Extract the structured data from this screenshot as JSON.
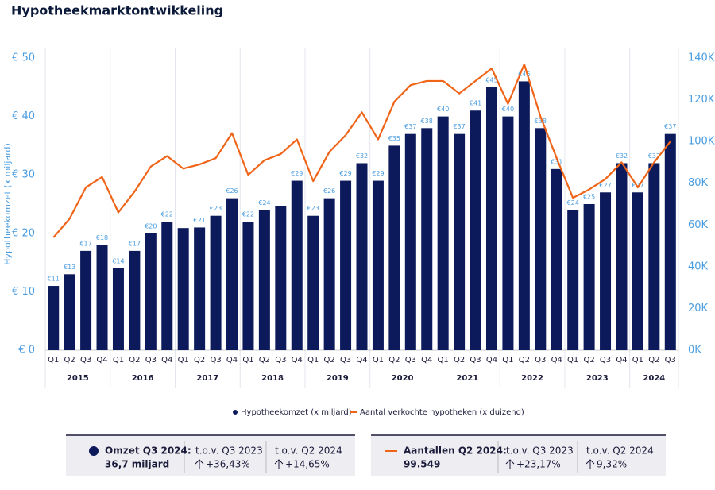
{
  "chart_data": {
    "type": "bar_line",
    "title": "Hypotheekmarktontwikkeling",
    "y_axis_label": "Hypotheekomzet (x miljard)",
    "categories": [
      "Q1",
      "Q2",
      "Q3",
      "Q4",
      "Q1",
      "Q2",
      "Q3",
      "Q4",
      "Q1",
      "Q2",
      "Q3",
      "Q4",
      "Q1",
      "Q2",
      "Q3",
      "Q4",
      "Q1",
      "Q2",
      "Q3",
      "Q4",
      "Q1",
      "Q2",
      "Q3",
      "Q4",
      "Q1",
      "Q2",
      "Q3",
      "Q4",
      "Q1",
      "Q2",
      "Q3",
      "Q4",
      "Q1",
      "Q2",
      "Q3",
      "Q4",
      "Q1",
      "Q2",
      "Q3"
    ],
    "years": [
      "2015",
      "2016",
      "2017",
      "2018",
      "2019",
      "2020",
      "2021",
      "2022",
      "2023",
      "2024"
    ],
    "series": [
      {
        "name": "Hypotheekomzet (x miljard)",
        "color": "#0c1a5c",
        "kind": "bar",
        "axis": "y",
        "values": [
          11,
          13,
          17,
          18,
          14,
          17,
          20,
          22,
          20.9,
          21,
          23,
          26,
          22,
          24,
          24.7,
          29,
          23,
          26,
          29,
          32,
          29,
          35,
          37,
          38,
          40,
          37,
          41,
          45,
          40,
          46,
          38,
          31,
          24,
          25,
          27,
          32,
          27,
          32,
          37
        ],
        "value_labels": [
          "€11",
          "€13",
          "€17",
          "€18",
          "€14",
          "€17",
          "€20",
          "€22",
          null,
          "€21",
          "€23",
          "€26",
          "€22",
          "€24",
          null,
          "€29",
          "€23",
          "€26",
          "€29",
          "€32",
          "€29",
          "€35",
          "€37",
          "€38",
          "€40",
          "€37",
          "€41",
          "€45",
          "€40",
          "€46",
          "€38",
          "€31",
          "€24",
          "€25",
          "€27",
          "€32",
          "€27",
          "€32",
          "€37"
        ]
      },
      {
        "name": "Aantal verkochte hypotheken (x duizend)",
        "color": "#f06418",
        "kind": "line",
        "axis": "y2",
        "values": [
          54,
          63,
          78,
          83,
          66,
          76,
          88,
          93,
          87,
          89,
          92,
          104,
          84,
          91,
          94,
          101,
          81,
          95,
          103,
          114,
          101,
          119,
          127,
          129,
          129,
          123,
          129,
          135,
          118,
          137,
          112,
          92,
          73,
          77,
          82,
          90,
          78,
          90,
          100
        ]
      }
    ],
    "ylim": [
      0,
      50
    ],
    "yticks": [
      {
        "value": 0,
        "label": "€ 0"
      },
      {
        "value": 10,
        "label": "€ 10"
      },
      {
        "value": 20,
        "label": "€ 20"
      },
      {
        "value": 30,
        "label": "€ 30"
      },
      {
        "value": 40,
        "label": "€ 40"
      },
      {
        "value": 50,
        "label": "€ 50"
      }
    ],
    "y2lim": [
      0,
      140
    ],
    "y2ticks": [
      {
        "value": 0,
        "label": "0K"
      },
      {
        "value": 20,
        "label": "20K"
      },
      {
        "value": 40,
        "label": "40K"
      },
      {
        "value": 60,
        "label": "60K"
      },
      {
        "value": 80,
        "label": "80K"
      },
      {
        "value": 100,
        "label": "100K"
      },
      {
        "value": 120,
        "label": "120K"
      },
      {
        "value": 140,
        "label": "140K"
      }
    ]
  },
  "summary": [
    {
      "title": "Omzet Q3 2024:",
      "value": "36,7 miljard",
      "comparisons": [
        {
          "label": "t.o.v. Q3 2023",
          "value": "+36,43%"
        },
        {
          "label": "t.o.v. Q2 2024",
          "value": "+14,65%"
        }
      ]
    },
    {
      "title": "Aantallen Q2 2024:",
      "value": "99.549",
      "comparisons": [
        {
          "label": "t.o.v. Q3 2023",
          "value": "+23,17%"
        },
        {
          "label": "t.o.v. Q2 2024",
          "value": "9,32%"
        }
      ]
    }
  ]
}
